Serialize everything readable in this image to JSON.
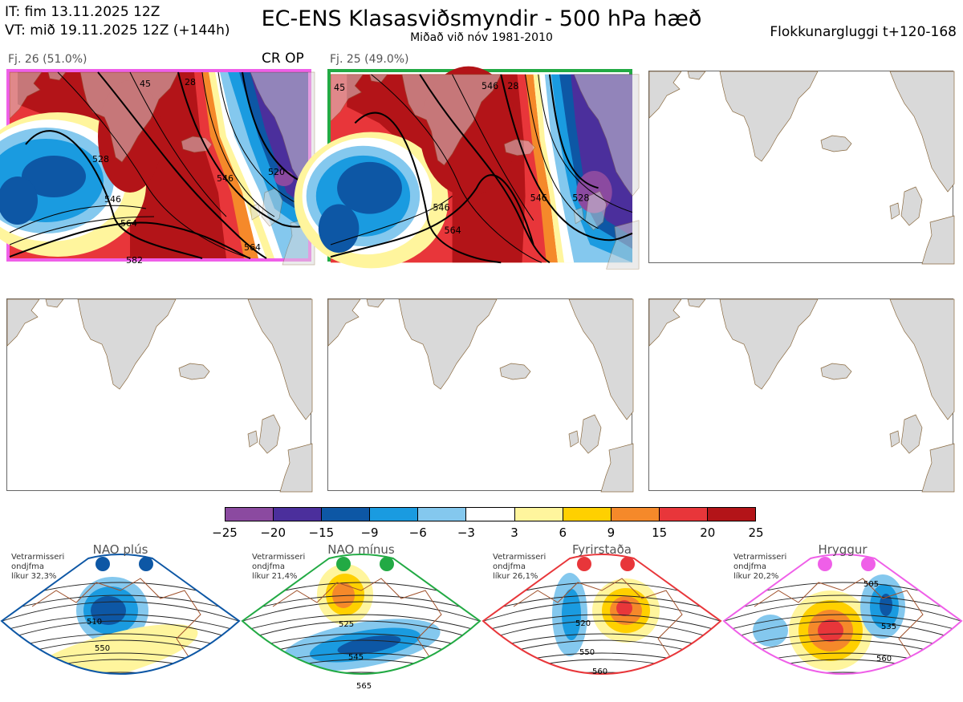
{
  "header": {
    "it_line": "IT: fim 13.11.2025 12Z",
    "vt_line": "VT: mið 19.11.2025 12Z  (+144h)",
    "title": "EC-ENS Klasasviðsmyndir - 500 hPa hæð",
    "subtitle": "Miðað við nóv 1981-2010",
    "window_label": "Flokkunargluggi t+120-168"
  },
  "panels": [
    {
      "label": "Fj. 26 (51.0%)",
      "tag": "CR OP",
      "frame_color": "#ef5fe8",
      "contours": [
        "528",
        "546",
        "564",
        "520",
        "546",
        "564",
        "582",
        "45",
        "28"
      ]
    },
    {
      "label": "Fj. 25 (49.0%)",
      "tag": "",
      "frame_color": "#22aa44",
      "contours": [
        "45",
        "546",
        "564",
        "546",
        "528",
        "28",
        "546"
      ]
    }
  ],
  "colorbar": {
    "colors": [
      "#8b4aa0",
      "#4b2f9c",
      "#0d57a5",
      "#1a9be0",
      "#84c8ee",
      "#ffffff",
      "#fff59d",
      "#ffd000",
      "#f5892a",
      "#e8363a",
      "#b31418"
    ],
    "ticks": [
      "−25",
      "−20",
      "−15",
      "−9",
      "−6",
      "−3",
      "3",
      "6",
      "9",
      "15",
      "20",
      "25"
    ]
  },
  "regimes": [
    {
      "name": "NAO plús",
      "note": [
        "Vetrarmisseri",
        "ondjfma",
        "líkur 32,3%"
      ],
      "color": "#0d57a5",
      "labels": [
        "510",
        "550"
      ]
    },
    {
      "name": "NAO mínus",
      "note": [
        "Vetrarmisseri",
        "ondjfma",
        "líkur 21,4%"
      ],
      "color": "#22aa44",
      "labels": [
        "525",
        "545",
        "565"
      ]
    },
    {
      "name": "Fyrirstaða",
      "note": [
        "Vetrarmisseri",
        "ondjfma",
        "líkur 26,1%"
      ],
      "color": "#e8363a",
      "labels": [
        "520",
        "550",
        "560"
      ]
    },
    {
      "name": "Hryggur",
      "note": [
        "Vetrarmisseri",
        "ondjfma",
        "líkur 20,2%"
      ],
      "color": "#ef5fe8",
      "labels": [
        "505",
        "535",
        "560"
      ]
    }
  ]
}
